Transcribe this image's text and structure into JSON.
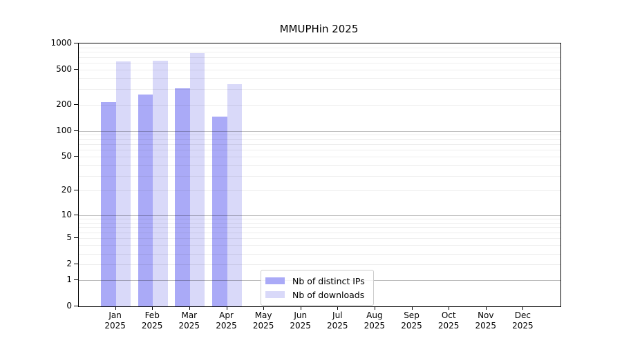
{
  "chart_data": {
    "type": "bar",
    "title": "MMUPHin 2025",
    "categories": [
      "Jan 2025",
      "Feb 2025",
      "Mar 2025",
      "Apr 2025",
      "May 2025",
      "Jun 2025",
      "Jul 2025",
      "Aug 2025",
      "Sep 2025",
      "Oct 2025",
      "Nov 2025",
      "Dec 2025"
    ],
    "series": [
      {
        "name": "Nb of distinct IPs",
        "color": "#aaaaf7",
        "values": [
          215,
          260,
          310,
          145,
          null,
          null,
          null,
          null,
          null,
          null,
          null,
          null
        ]
      },
      {
        "name": "Nb of downloads",
        "color": "#d9d9f9",
        "values": [
          625,
          640,
          780,
          345,
          null,
          null,
          null,
          null,
          null,
          null,
          null,
          null
        ]
      }
    ],
    "xlabel": "",
    "ylabel": "",
    "yscale": "log1p",
    "ylim": [
      0,
      1000
    ],
    "yticks": [
      0,
      1,
      2,
      5,
      10,
      20,
      50,
      100,
      200,
      500,
      1000
    ],
    "grid": {
      "orientation": "horizontal",
      "major_at": [
        1,
        10,
        100,
        1000
      ],
      "minor": "2-9 of each decade"
    },
    "legend": {
      "position": "inside-bottom-center",
      "items": [
        "Nb of distinct IPs",
        "Nb of downloads"
      ]
    }
  }
}
